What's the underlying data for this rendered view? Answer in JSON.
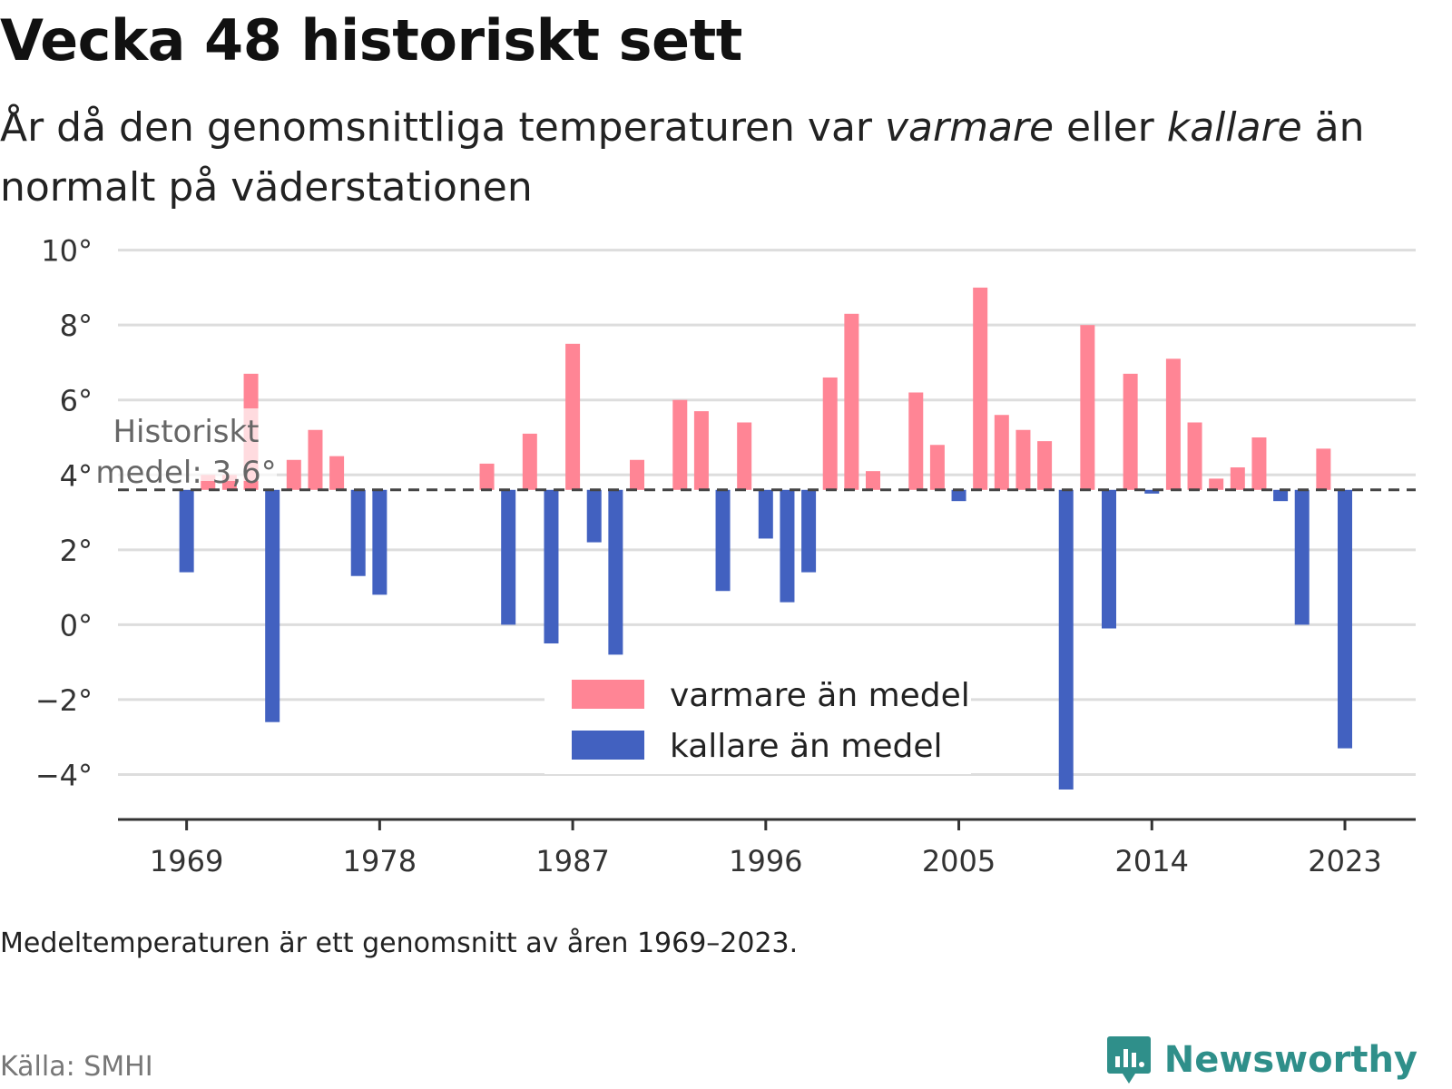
{
  "title": "Vecka 48 historiskt sett",
  "subtitle": {
    "part1": "År då den genomsnittliga temperaturen var ",
    "warm_word": "varmare",
    "part2": " eller ",
    "cold_word": "kallare",
    "part3": " än normalt på väderstationen"
  },
  "note": "Medeltemperaturen är ett genomsnitt av åren 1969–2023.",
  "source": "Källa: SMHI",
  "brand": "Newsworthy",
  "colors": {
    "warm": "#ff8595",
    "cold": "#4261c0",
    "grid": "#dddddd",
    "mean_line": "#444444",
    "brand": "#2f8f8a"
  },
  "chart_data": {
    "type": "bar",
    "baseline": 3.6,
    "ylim": [
      -5.2,
      10.5
    ],
    "yticks": [
      -4,
      -2,
      0,
      2,
      4,
      6,
      8,
      10
    ],
    "ytick_labels": [
      "−4°",
      "−2°",
      "0°",
      "2°",
      "4°",
      "6°",
      "8°",
      "10°"
    ],
    "xticks": [
      1969,
      1978,
      1987,
      1996,
      2005,
      2014,
      2023
    ],
    "xtick_labels": [
      "1969",
      "1978",
      "1987",
      "1996",
      "2005",
      "2014",
      "2023"
    ],
    "xlim": [
      1965.8,
      2026.3
    ],
    "annotation": {
      "line1": "Historiskt",
      "line2": "medel: 3,6°"
    },
    "legend": {
      "warm": "varmare än medel",
      "cold": "kallare än medel"
    },
    "grid": true,
    "data": [
      {
        "year": 1969,
        "value": 1.4
      },
      {
        "year": 1970,
        "value": 4.0
      },
      {
        "year": 1971,
        "value": 4.0
      },
      {
        "year": 1972,
        "value": 6.7
      },
      {
        "year": 1973,
        "value": -2.6
      },
      {
        "year": 1974,
        "value": 4.4
      },
      {
        "year": 1975,
        "value": 5.2
      },
      {
        "year": 1976,
        "value": 4.5
      },
      {
        "year": 1977,
        "value": 1.3
      },
      {
        "year": 1978,
        "value": 0.8
      },
      {
        "year": 1983,
        "value": 4.3
      },
      {
        "year": 1984,
        "value": 0.0
      },
      {
        "year": 1985,
        "value": 5.1
      },
      {
        "year": 1986,
        "value": -0.5
      },
      {
        "year": 1987,
        "value": 7.5
      },
      {
        "year": 1988,
        "value": 2.2
      },
      {
        "year": 1989,
        "value": -0.8
      },
      {
        "year": 1990,
        "value": 4.4
      },
      {
        "year": 1992,
        "value": 6.0
      },
      {
        "year": 1993,
        "value": 5.7
      },
      {
        "year": 1994,
        "value": 0.9
      },
      {
        "year": 1995,
        "value": 5.4
      },
      {
        "year": 1996,
        "value": 2.3
      },
      {
        "year": 1997,
        "value": 0.6
      },
      {
        "year": 1998,
        "value": 1.4
      },
      {
        "year": 1999,
        "value": 6.6
      },
      {
        "year": 2000,
        "value": 8.3
      },
      {
        "year": 2001,
        "value": 4.1
      },
      {
        "year": 2003,
        "value": 6.2
      },
      {
        "year": 2004,
        "value": 4.8
      },
      {
        "year": 2005,
        "value": 3.3
      },
      {
        "year": 2006,
        "value": 9.0
      },
      {
        "year": 2007,
        "value": 5.6
      },
      {
        "year": 2008,
        "value": 5.2
      },
      {
        "year": 2009,
        "value": 4.9
      },
      {
        "year": 2010,
        "value": -4.4
      },
      {
        "year": 2011,
        "value": 8.0
      },
      {
        "year": 2012,
        "value": -0.1
      },
      {
        "year": 2013,
        "value": 6.7
      },
      {
        "year": 2014,
        "value": 3.5
      },
      {
        "year": 2015,
        "value": 7.1
      },
      {
        "year": 2016,
        "value": 5.4
      },
      {
        "year": 2017,
        "value": 3.9
      },
      {
        "year": 2018,
        "value": 4.2
      },
      {
        "year": 2019,
        "value": 5.0
      },
      {
        "year": 2020,
        "value": 3.3
      },
      {
        "year": 2021,
        "value": 0.0
      },
      {
        "year": 2022,
        "value": 4.7
      },
      {
        "year": 2023,
        "value": -3.3
      }
    ]
  }
}
